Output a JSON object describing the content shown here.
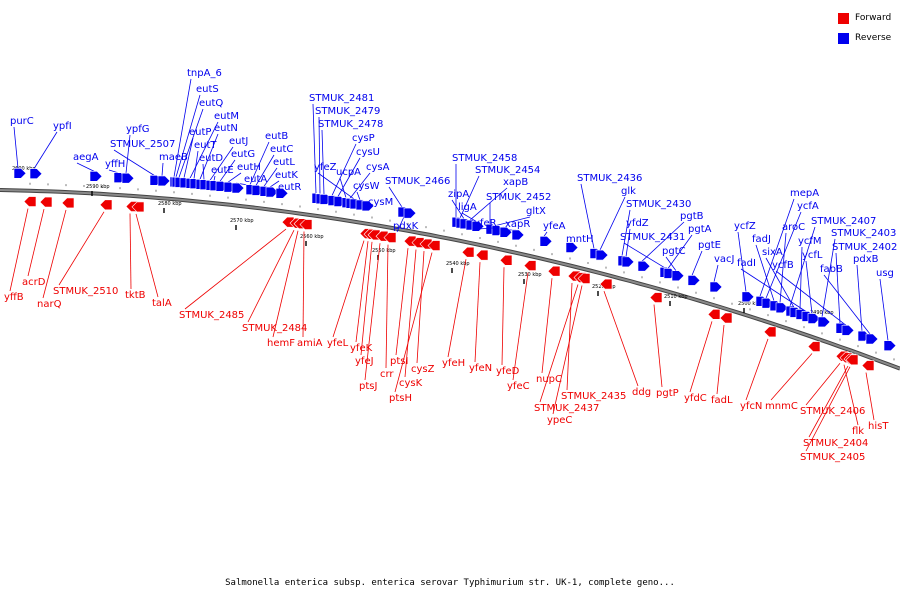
{
  "legend": {
    "forward": {
      "label": "Forward",
      "color": "#ee0000"
    },
    "reverse": {
      "label": "Reverse",
      "color": "#0000ee"
    }
  },
  "caption": "Salmonella enterica subsp. enterica serovar Typhimurium str. UK-1, complete geno...",
  "backbone_color": "#8a8a8a",
  "kbp_ticks": [
    "2600 kbp",
    "2590 kbp",
    "2580 kbp",
    "2570 kbp",
    "2560 kbp",
    "2550 kbp",
    "2540 kbp",
    "2530 kbp",
    "2520 kbp",
    "2510 kbp",
    "2500 kbp",
    "2490 kbp"
  ],
  "reverse_genes": [
    "purC",
    "ypfI",
    "aegA",
    "yffH",
    "ypfG",
    "STMUK_2507",
    "maeB",
    "tnpA_6",
    "eutS",
    "eutQ",
    "eutP",
    "eutM",
    "eutT",
    "eutN",
    "eutD",
    "eutJ",
    "eutE",
    "eutG",
    "eutH",
    "eutA",
    "eutB",
    "eutC",
    "eutL",
    "eutK",
    "eutR",
    "STMUK_2481",
    "STMUK_2479",
    "STMUK_2478",
    "cysP",
    "cysU",
    "ucpA",
    "cysA",
    "yfeZ",
    "cysW",
    "cysM",
    "STMUK_2466",
    "pdxK",
    "STMUK_2458",
    "STMUK_2454",
    "zipA",
    "xapB",
    "ligA",
    "STMUK_2452",
    "gltX",
    "yfeR",
    "xapR",
    "yfeA",
    "mntH",
    "STMUK_2436",
    "glk",
    "STMUK_2430",
    "yfdZ",
    "pgtB",
    "STMUK_2431",
    "pgtA",
    "pgtC",
    "pgtE",
    "vacJ",
    "mepA",
    "ycfZ",
    "ycfA",
    "fadJ",
    "aroC",
    "STMUK_2407",
    "sixA",
    "ycfM",
    "fadI",
    "ycfL",
    "STMUK_2403",
    "STMUK_2402",
    "ycfB",
    "pdxB",
    "fabB",
    "usg"
  ],
  "forward_genes": [
    "yffB",
    "acrD",
    "narQ",
    "STMUK_2510",
    "tktB",
    "talA",
    "STMUK_2485",
    "STMUK_2484",
    "hemF",
    "amiA",
    "yfeL",
    "yfeK",
    "yfeJ",
    "ptsJ",
    "crr",
    "ptsI",
    "cysK",
    "cysZ",
    "ptsH",
    "yfeH",
    "yfeN",
    "yfeD",
    "yfeC",
    "nupC",
    "STMUK_2435",
    "STMUK_2437",
    "ypeC",
    "ddg",
    "pgtP",
    "yfdC",
    "fadL",
    "yfcN",
    "mnmC",
    "STMUK_2406",
    "flk",
    "hisT",
    "STMUK_2404",
    "STMUK_2405"
  ]
}
